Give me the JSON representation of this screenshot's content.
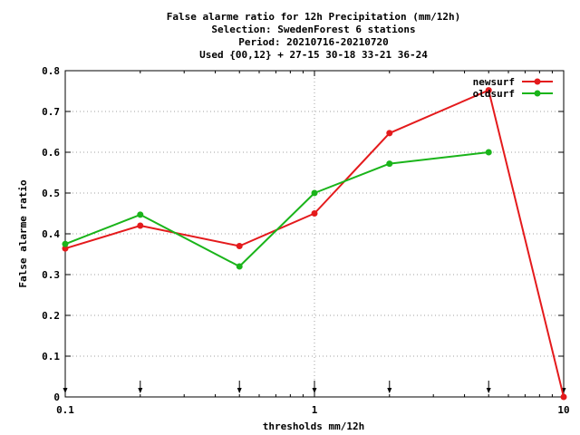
{
  "chart_data": {
    "type": "line",
    "title_lines": [
      "False alarme ratio  for 12h Precipitation (mm/12h)",
      "Selection: SwedenForest      6 stations",
      "Period: 20210716-20210720",
      "Used {00,12} + 27-15 30-18 33-21 36-24"
    ],
    "xlabel": "thresholds mm/12h",
    "ylabel": "False alarme ratio",
    "xscale": "log",
    "xlim": [
      0.1,
      10
    ],
    "ylim": [
      0,
      0.8
    ],
    "x_ticks": [
      "0.1",
      "1",
      "10"
    ],
    "y_ticks": [
      "0",
      "0.1",
      "0.2",
      "0.3",
      "0.4",
      "0.5",
      "0.6",
      "0.7",
      "0.8"
    ],
    "grid": true,
    "legend_position": "top-right",
    "threshold_markers_x": [
      0.1,
      0.2,
      0.5,
      1,
      2,
      5,
      10
    ],
    "series": [
      {
        "name": "newsurf",
        "color": "#e41a1c",
        "x": [
          0.1,
          0.2,
          0.5,
          1,
          2,
          5,
          10
        ],
        "y": [
          0.364,
          0.42,
          0.37,
          0.45,
          0.647,
          0.752,
          0.0
        ]
      },
      {
        "name": "oldsurf",
        "color": "#1ab41a",
        "x": [
          0.1,
          0.2,
          0.5,
          1,
          2,
          5
        ],
        "y": [
          0.375,
          0.447,
          0.32,
          0.5,
          0.572,
          0.6
        ]
      }
    ]
  }
}
